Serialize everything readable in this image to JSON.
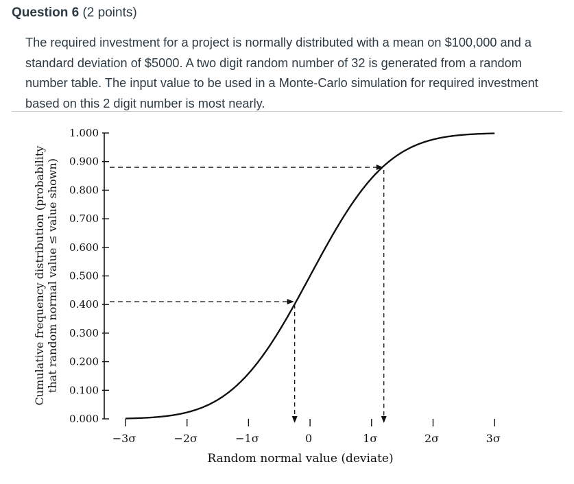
{
  "question": {
    "title": "Question 6",
    "points": "(2 points)",
    "text": "The required investment for a project is normally distributed with a mean on $100,000 and a standard deviation of $5000.  A two digit random number of 32 is generated from a random number table.  The input value to be used in a Monte-Carlo simulation for required investment based on this 2 digit number is most nearly."
  },
  "chart_data": {
    "type": "line",
    "xlabel": "Random normal value (deviate)",
    "ylabel_line1": "Cumulative frequency distribution (probability",
    "ylabel_line2": "that random normal value ≤ value shown)",
    "x_tick_labels": [
      "−3σ",
      "−2σ",
      "−1σ",
      "0",
      "1σ",
      "2σ",
      "3σ"
    ],
    "x_ticks": [
      -3,
      -2,
      -1,
      0,
      1,
      2,
      3
    ],
    "y_tick_labels": [
      "0.000",
      "0.100",
      "0.200",
      "0.300",
      "0.400",
      "0.500",
      "0.600",
      "0.700",
      "0.800",
      "0.900",
      "1.000"
    ],
    "y_ticks": [
      0,
      0.1,
      0.2,
      0.3,
      0.4,
      0.5,
      0.6,
      0.7,
      0.8,
      0.9,
      1.0
    ],
    "xlim": [
      -3,
      3
    ],
    "ylim": [
      0,
      1
    ],
    "curve": "standard normal CDF",
    "guides": [
      {
        "y": 0.41,
        "x": -0.25
      },
      {
        "y": 0.88,
        "x": 1.2
      }
    ]
  }
}
